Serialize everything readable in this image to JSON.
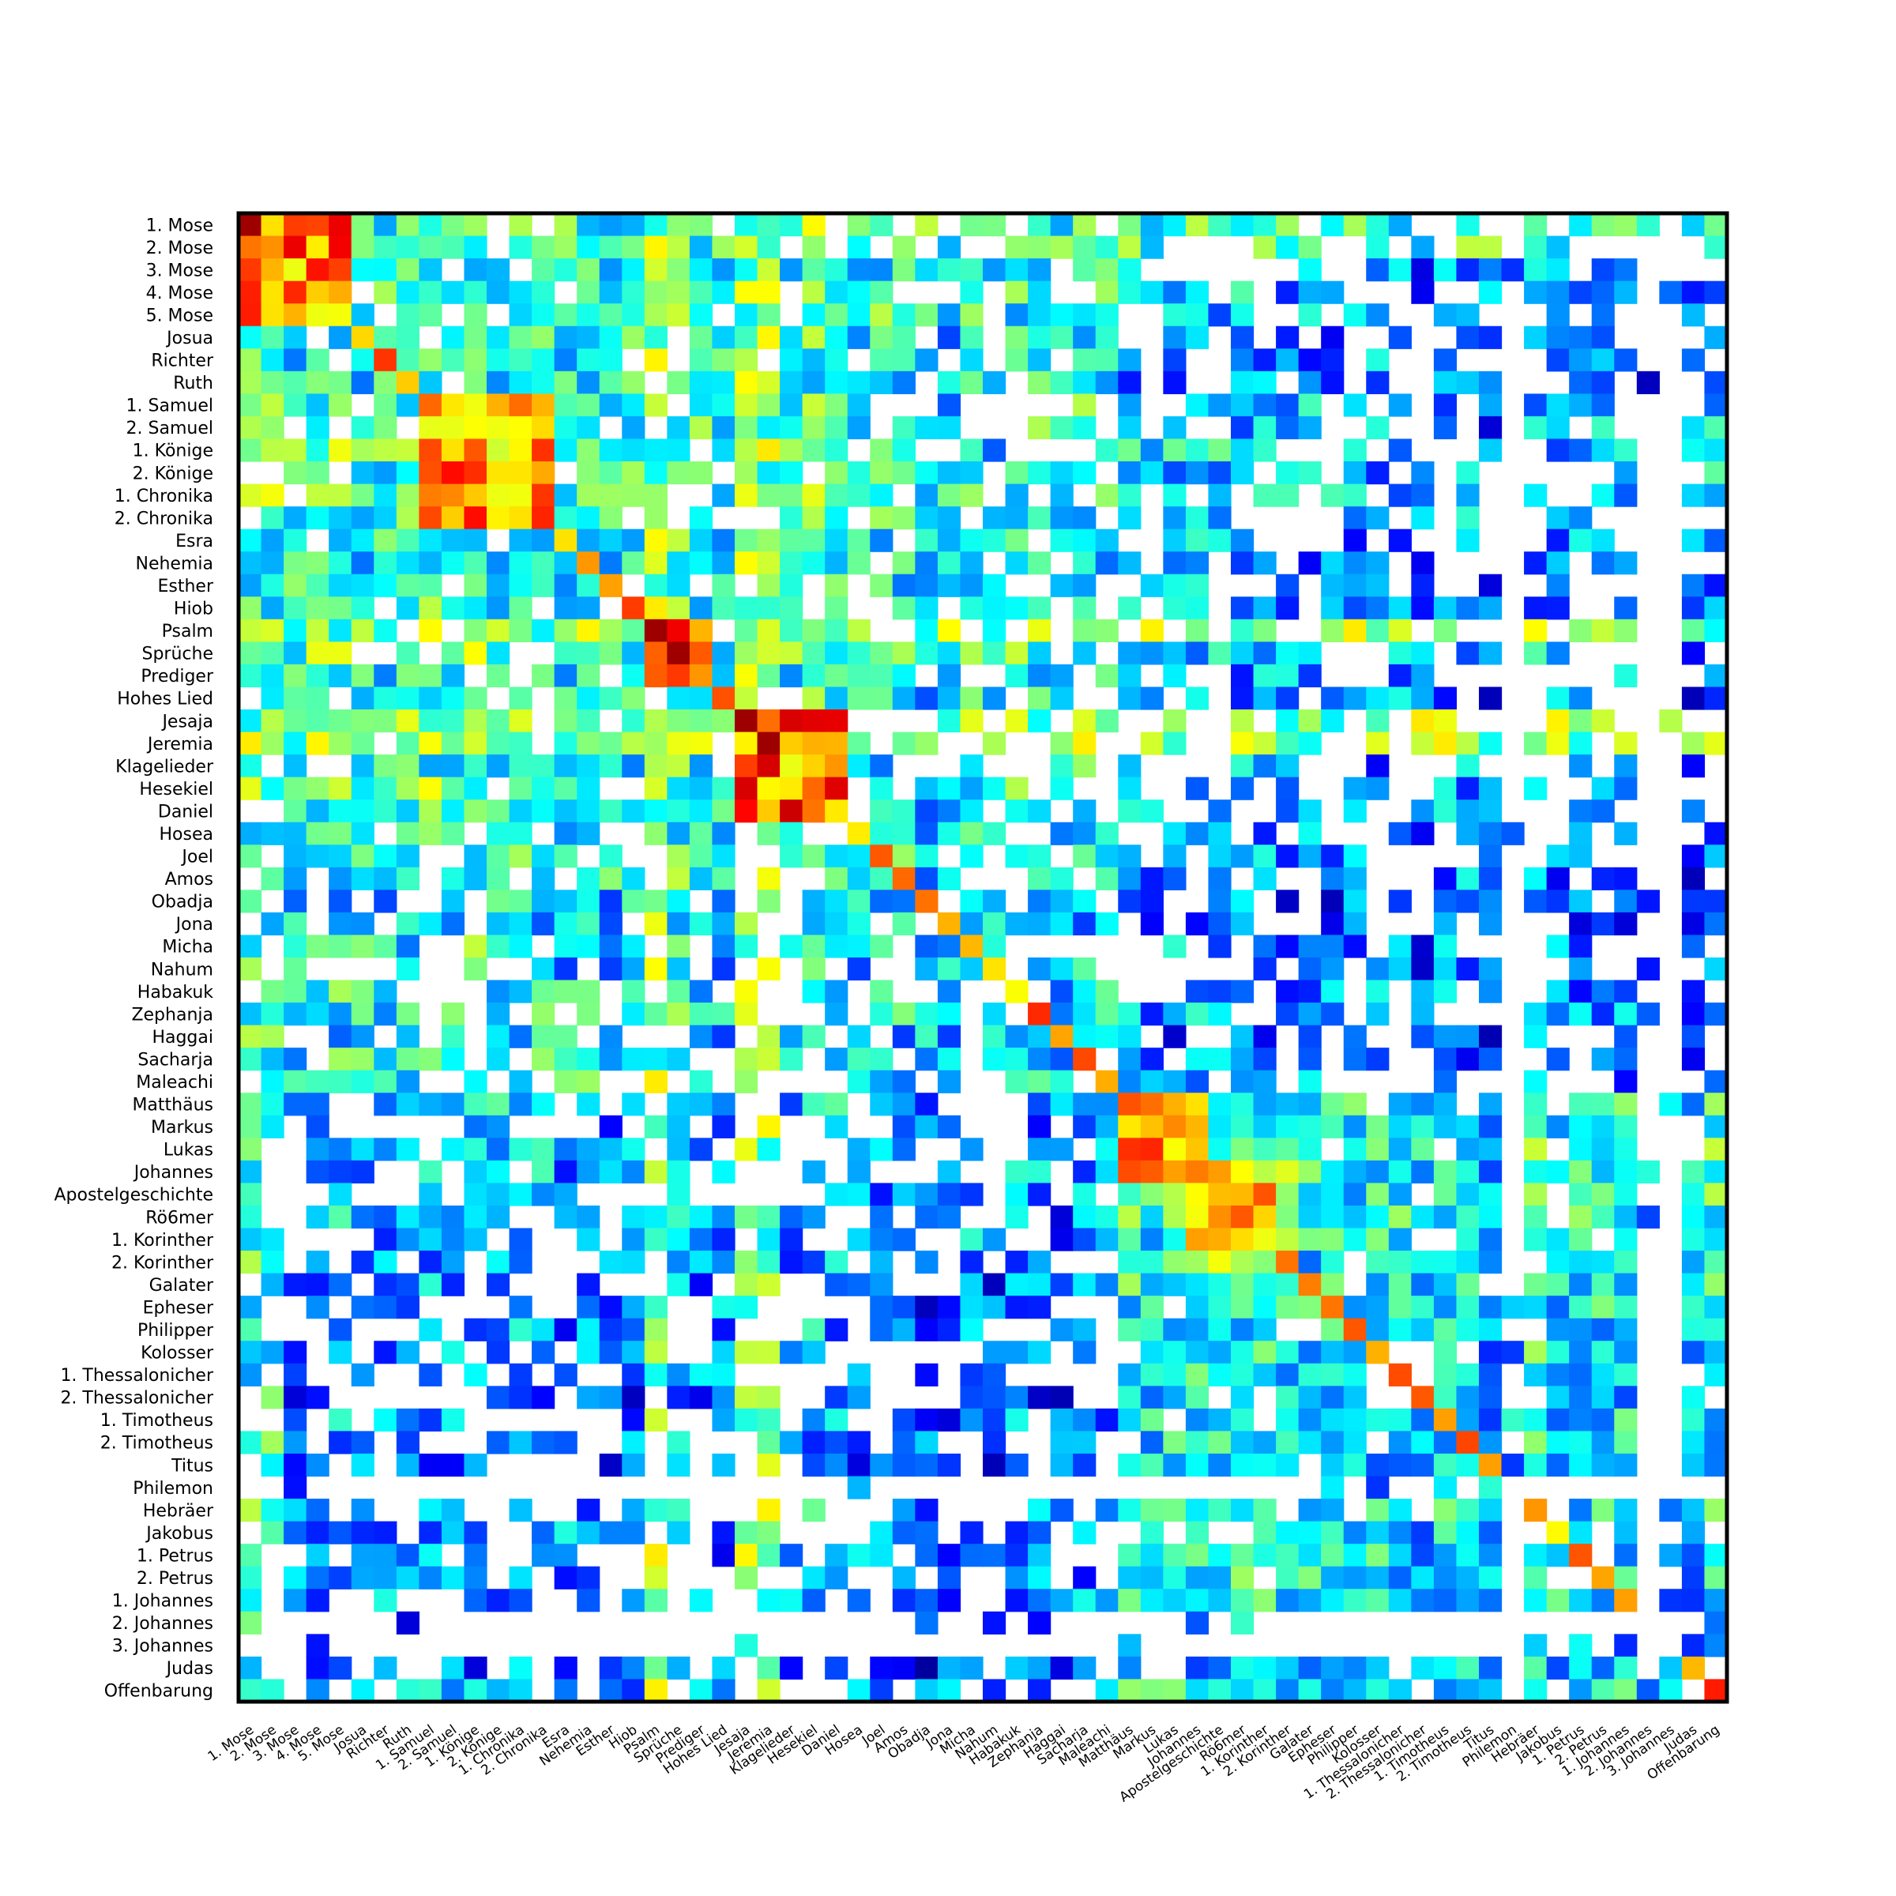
{
  "chart_data": {
    "type": "heatmap",
    "title": "",
    "xlabel": "",
    "ylabel": "",
    "colormap": "jet",
    "empty_cell_color": "#ffffff",
    "labels": [
      "1. Mose",
      "2. Mose",
      "3. Mose",
      "4. Mose",
      "5. Mose",
      "Josua",
      "Richter",
      "Ruth",
      "1. Samuel",
      "2. Samuel",
      "1. Könige",
      "2. Könige",
      "1. Chronika",
      "2. Chronika",
      "Esra",
      "Nehemia",
      "Esther",
      "Hiob",
      "Psalm",
      "Sprüche",
      "Prediger",
      "Hohes Lied",
      "Jesaja",
      "Jeremia",
      "Klagelieder",
      "Hesekiel",
      "Daniel",
      "Hosea",
      "Joel",
      "Amos",
      "Obadja",
      "Jona",
      "Micha",
      "Nahum",
      "Habakuk",
      "Zephanja",
      "Haggai",
      "Sacharja",
      "Maleachi",
      "Matthäus",
      "Markus",
      "Lukas",
      "Johannes",
      "Apostelgeschichte",
      "Rö6mer",
      "1. Korinther",
      "2. Korinther",
      "Galater",
      "Epheser",
      "Philipper",
      "Kolosser",
      "1. Thessalonicher",
      "2. Thessalonicher",
      "1. Timotheus",
      "2. Timotheus",
      "Titus",
      "Philemon",
      "Hebräer",
      "Jakobus",
      "1. Petrus",
      "2. Petrus",
      "1. Johannes",
      "2. Johannes",
      "3. Johannes",
      "Judas",
      "Offenbarung"
    ],
    "value_range": [
      0,
      1
    ],
    "matrix_note": "Symmetric co-reference matrix; values estimated from colors (0=dark blue, 1=dark red); null = white cell.",
    "cell_values_estimate": {
      "diagonal_high": [
        "1. Mose",
        "Psalm",
        "Sprüche",
        "Jesaja",
        "Jeremia",
        "Offenbarung"
      ],
      "strong_blocks": [
        {
          "rows": [
            "1. Mose",
            "2. Mose",
            "3. Mose",
            "4. Mose",
            "5. Mose"
          ],
          "cols": [
            "1. Mose",
            "2. Mose",
            "3. Mose",
            "4. Mose",
            "5. Mose"
          ],
          "value": 0.75
        },
        {
          "rows": [
            "1. Samuel",
            "2. Samuel",
            "1. Könige",
            "2. Könige",
            "1. Chronika",
            "2. Chronika"
          ],
          "cols": [
            "1. Samuel",
            "2. Samuel",
            "1. Könige",
            "2. Könige",
            "1. Chronika",
            "2. Chronika"
          ],
          "value": 0.72
        },
        {
          "rows": [
            "Matthäus",
            "Markus",
            "Lukas",
            "Johannes"
          ],
          "cols": [
            "Matthäus",
            "Markus",
            "Lukas",
            "Johannes"
          ],
          "value": 0.75
        },
        {
          "rows": [
            "Jesaja",
            "Jeremia",
            "Hesekiel"
          ],
          "cols": [
            "Jesaja",
            "Jeremia",
            "Hesekiel"
          ],
          "value": 0.8
        }
      ]
    }
  }
}
